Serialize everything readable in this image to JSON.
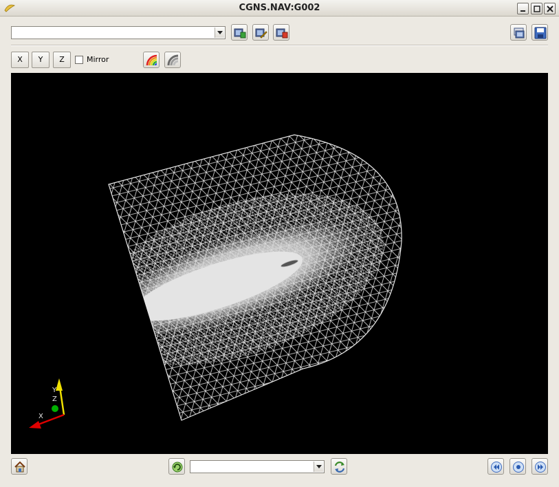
{
  "window": {
    "title": "CGNS.NAV:G002",
    "controls": [
      "minimize-icon",
      "maximize-icon",
      "close-icon"
    ]
  },
  "toolbar_top": {
    "selector_value": "",
    "buttons": [
      "add-view-icon",
      "edit-view-icon",
      "remove-view-icon"
    ],
    "right_buttons": [
      "snapshot-icon",
      "save-icon"
    ]
  },
  "toolbar_view": {
    "axis_x_label": "X",
    "axis_y_label": "Y",
    "axis_z_label": "Z",
    "mirror_label": "Mirror",
    "mirror_checked": false,
    "buttons": [
      "colormap-icon",
      "surface-icon"
    ]
  },
  "viewport": {
    "background": "#000000",
    "mesh_color": "#e6e6e6",
    "axes_widget": {
      "x_label": "X",
      "y_label": "Y",
      "z_label": "Z",
      "x_color": "#e00000",
      "y_color": "#f0e000",
      "z_color": "#00c000"
    }
  },
  "toolbar_bottom": {
    "family_value": "",
    "buttons": [
      "home-icon",
      "refresh-icon",
      "cycle-icon"
    ],
    "playback": [
      "rewind-icon",
      "stop-icon",
      "forward-icon"
    ]
  }
}
